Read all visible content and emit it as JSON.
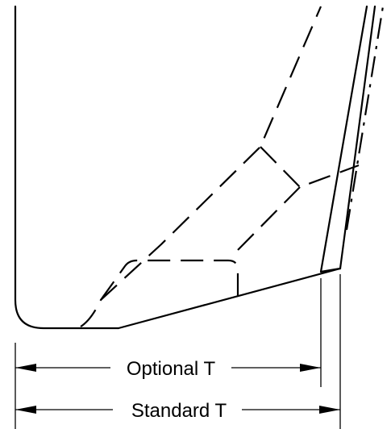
{
  "dimensions": {
    "optional_label": "Optional T",
    "standard_label": "Standard T"
  }
}
